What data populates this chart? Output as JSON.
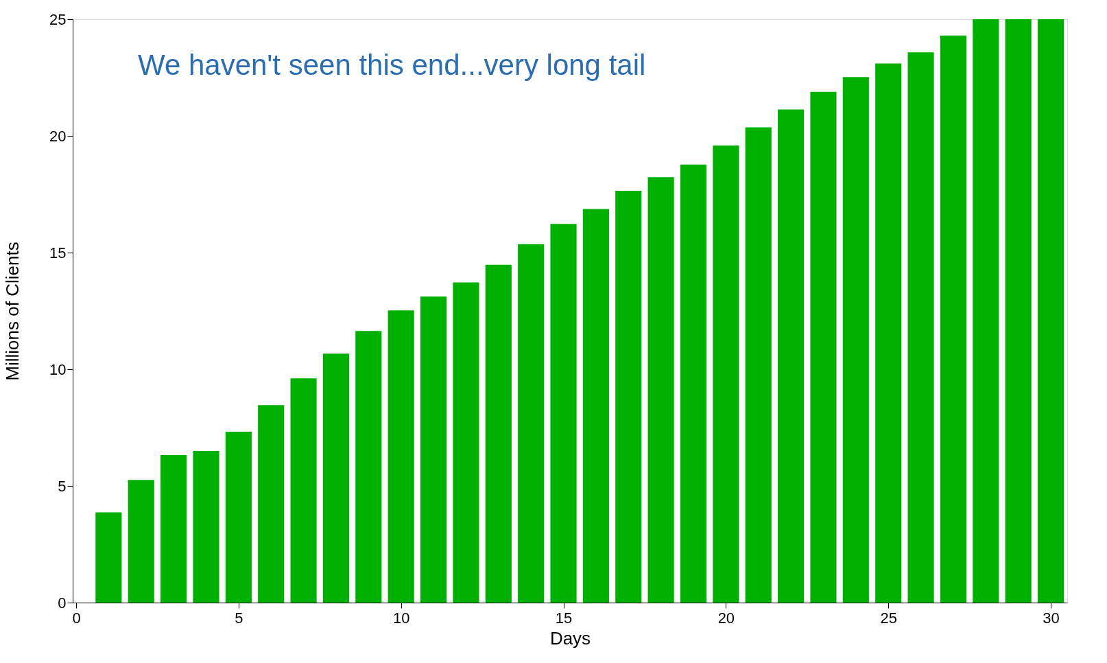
{
  "chart_data": {
    "type": "bar",
    "xlabel": "Days",
    "ylabel": "Millions of Clients",
    "x": [
      1,
      2,
      3,
      4,
      5,
      6,
      7,
      8,
      9,
      10,
      11,
      12,
      13,
      14,
      15,
      16,
      17,
      18,
      19,
      20,
      21,
      22,
      23,
      24,
      25,
      26,
      27,
      28,
      29,
      30
    ],
    "values": [
      3.87,
      5.26,
      6.32,
      6.5,
      7.32,
      8.46,
      9.61,
      10.67,
      11.64,
      12.52,
      13.12,
      13.72,
      14.48,
      15.36,
      16.23,
      16.87,
      17.65,
      18.23,
      18.77,
      19.59,
      20.37,
      21.13,
      21.89,
      22.52,
      23.1,
      23.58,
      24.3,
      25.0,
      25,
      25
    ],
    "color": "#00b000",
    "xlim": [
      0,
      30.4
    ],
    "xticks": [
      0,
      5,
      10,
      15,
      20,
      25,
      30
    ],
    "ylim": [
      0,
      25
    ],
    "yticks": [
      0,
      5,
      10,
      15,
      20,
      25
    ],
    "grid": false,
    "annotations": [
      "We haven't seen this end...very long tail"
    ]
  }
}
